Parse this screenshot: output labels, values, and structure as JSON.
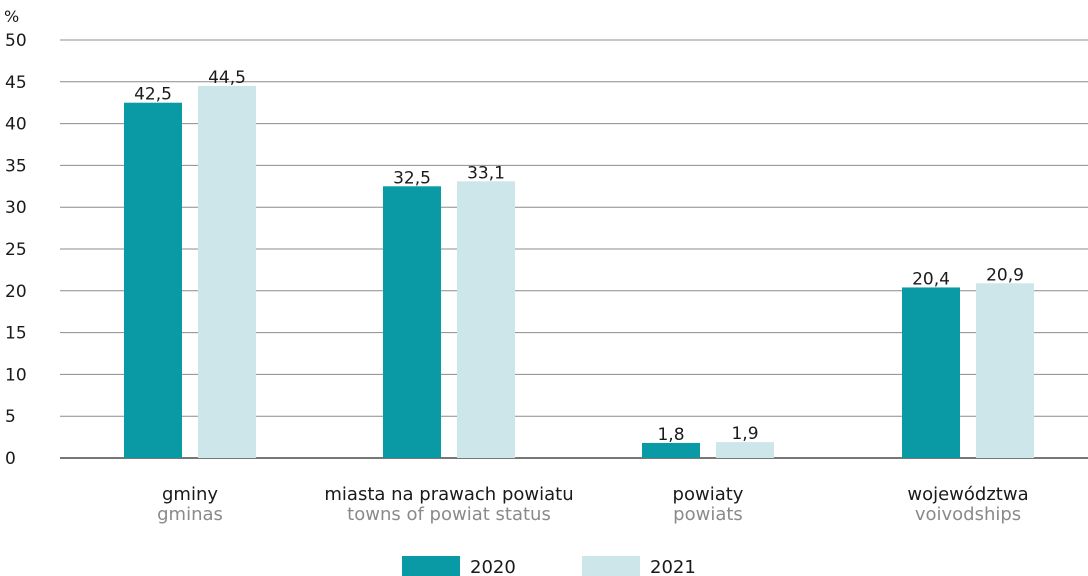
{
  "chart_data": {
    "type": "bar",
    "y_unit": "%",
    "ylim": [
      0,
      50
    ],
    "yticks": [
      0,
      5,
      10,
      15,
      20,
      25,
      30,
      35,
      40,
      45,
      50
    ],
    "grid": true,
    "legend_position": "bottom-center",
    "categories": [
      {
        "label": "gminy",
        "label_en": "gminas"
      },
      {
        "label": "miasta na prawach powiatu",
        "label_en": "towns of powiat status"
      },
      {
        "label": "powiaty",
        "label_en": "powiats"
      },
      {
        "label": "województwa",
        "label_en": "voivodships"
      }
    ],
    "series": [
      {
        "name": "2020",
        "color": "#0a9aa6",
        "values": [
          42.5,
          32.5,
          1.8,
          20.4
        ],
        "labels": [
          "42,5",
          "32,5",
          "1,8",
          "20,4"
        ]
      },
      {
        "name": "2021",
        "color": "#cde6ea",
        "values": [
          44.5,
          33.1,
          1.9,
          20.9
        ],
        "labels": [
          "44,5",
          "33,1",
          "1,9",
          "20,9"
        ]
      }
    ]
  }
}
